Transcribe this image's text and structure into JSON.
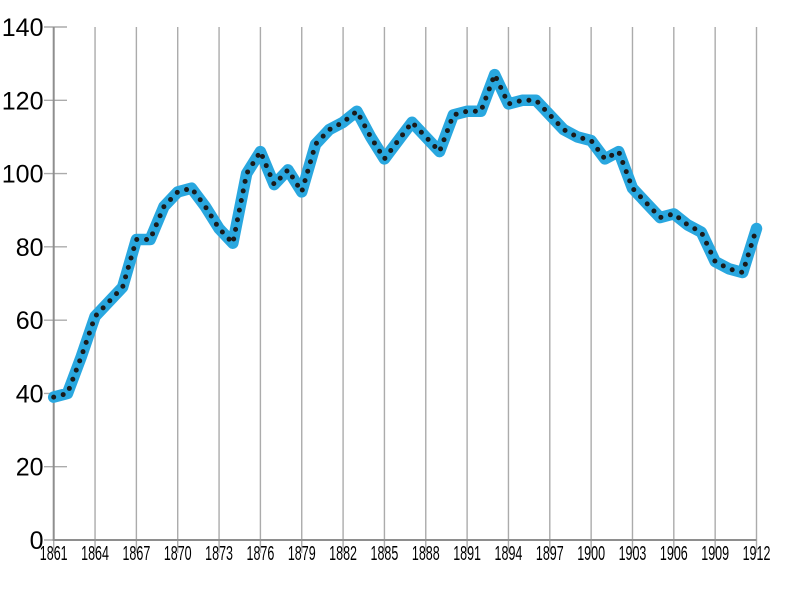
{
  "chart_data": {
    "type": "line",
    "title": "",
    "xlabel": "",
    "ylabel": "",
    "legend": "none",
    "grid": "vertical-only",
    "x": [
      1861,
      1862,
      1863,
      1864,
      1865,
      1866,
      1867,
      1868,
      1869,
      1870,
      1871,
      1872,
      1873,
      1874,
      1875,
      1876,
      1877,
      1878,
      1879,
      1880,
      1881,
      1882,
      1883,
      1884,
      1885,
      1886,
      1887,
      1888,
      1889,
      1890,
      1891,
      1892,
      1893,
      1894,
      1895,
      1896,
      1897,
      1898,
      1899,
      1900,
      1901,
      1902,
      1903,
      1904,
      1905,
      1906,
      1907,
      1908,
      1909,
      1910,
      1911,
      1912
    ],
    "values": [
      39,
      40,
      50,
      61,
      65,
      69,
      82,
      82,
      91,
      95,
      96,
      91,
      85,
      81,
      100,
      106,
      97,
      101,
      95,
      108,
      112,
      114,
      117,
      110,
      104,
      109,
      114,
      110,
      106,
      116,
      117,
      117,
      127,
      119,
      120,
      120,
      116,
      112,
      110,
      109,
      104,
      106,
      96,
      92,
      88,
      89,
      86,
      84,
      76,
      74,
      73,
      85
    ],
    "xlim": [
      1861,
      1912
    ],
    "ylim": [
      0,
      140
    ],
    "y_ticks": [
      0,
      20,
      40,
      60,
      80,
      100,
      120,
      140
    ],
    "x_tick_labels": [
      "1861",
      "1864",
      "1867",
      "1870",
      "1873",
      "1876",
      "1879",
      "1882",
      "1885",
      "1888",
      "1891",
      "1894",
      "1897",
      "1900",
      "1903",
      "1906",
      "1909",
      "1912"
    ],
    "style": {
      "line_color": "#29A7DF",
      "marker_color": "#1a1a1a",
      "marker_style": "dotted-overlay",
      "grid_color": "#ABABAB",
      "axis_color": "#8E8E8E",
      "text_color": "#000000",
      "background": "#FFFFFF"
    }
  }
}
